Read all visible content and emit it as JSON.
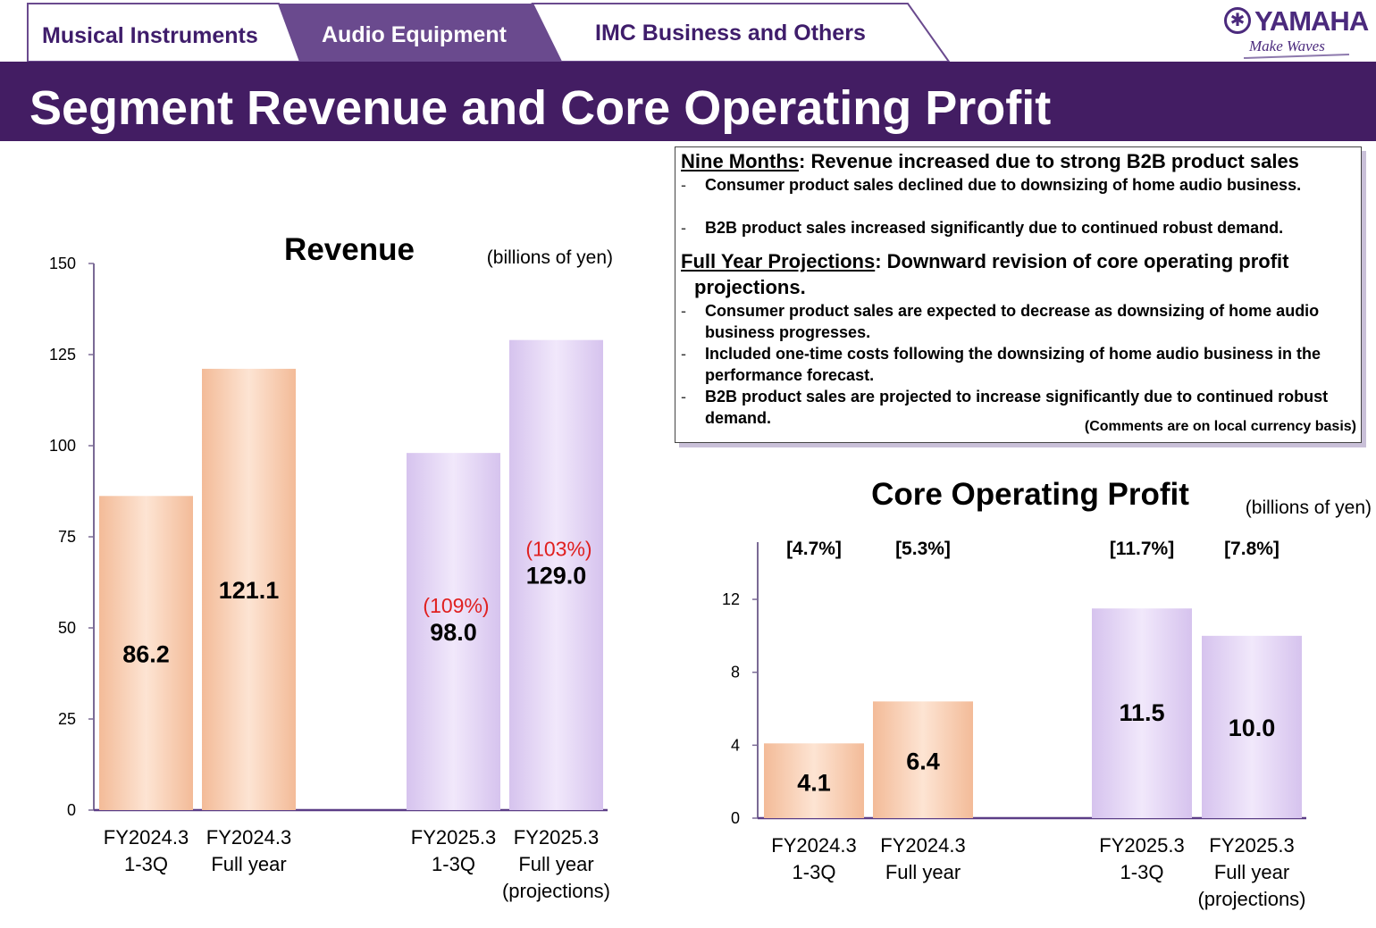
{
  "tabs": [
    {
      "label": "Musical Instruments",
      "active": false
    },
    {
      "label": "Audio Equipment",
      "active": true
    },
    {
      "label": "IMC Business and Others",
      "active": false
    }
  ],
  "logo": {
    "text": "YAMAHA",
    "tagline": "Make Waves"
  },
  "colors": {
    "brand_purple": "#431d63",
    "tab_active": "#6a4a8e",
    "bar_orange": "#f6c9a9",
    "bar_purple": "#dccbf0",
    "pct_red": "#e02020"
  },
  "page_title": "Segment Revenue and Core Operating Profit",
  "comments": {
    "nine_months": {
      "label": "Nine Months",
      "headline": ": Revenue increased due to strong B2B product sales",
      "bullets": [
        "Consumer product sales declined due to downsizing of home audio business.",
        "B2B product sales increased significantly due to continued robust demand."
      ]
    },
    "full_year": {
      "label": "Full Year Projections",
      "headline": ": Downward revision of core operating profit",
      "headline_cont": "projections.",
      "bullets": [
        "Consumer product sales are expected to decrease as downsizing of home audio business progresses.",
        "Included one-time costs following the downsizing of home audio business in the performance forecast.",
        "B2B product sales are projected to increase significantly due to continued robust demand."
      ]
    },
    "note": "(Comments are on local currency basis)",
    "dash": "-"
  },
  "chart_data": [
    {
      "type": "bar",
      "title": "Revenue",
      "unit": "(billions of yen)",
      "categories": [
        [
          "FY2024.3",
          "1-3Q"
        ],
        [
          "FY2024.3",
          "Full year"
        ],
        [
          "FY2025.3",
          "1-3Q"
        ],
        [
          "FY2025.3",
          "Full year",
          "(projections)"
        ]
      ],
      "values": [
        86.2,
        121.1,
        98.0,
        129.0
      ],
      "value_labels": [
        "86.2",
        "121.1",
        "98.0",
        "129.0"
      ],
      "yoy_labels": [
        "",
        "",
        "(109%)",
        "(103%)"
      ],
      "yticks": [
        0,
        25,
        50,
        75,
        100,
        125,
        150
      ],
      "ylim": [
        0,
        150
      ],
      "xlabel": "",
      "ylabel": ""
    },
    {
      "type": "bar",
      "title": "Core Operating Profit",
      "unit": "(billions of yen)",
      "categories": [
        [
          "FY2024.3",
          "1-3Q"
        ],
        [
          "FY2024.3",
          "Full year"
        ],
        [
          "FY2025.3",
          "1-3Q"
        ],
        [
          "FY2025.3",
          "Full year",
          "(projections)"
        ]
      ],
      "values": [
        4.1,
        6.4,
        11.5,
        10.0
      ],
      "value_labels": [
        "4.1",
        "6.4",
        "11.5",
        "10.0"
      ],
      "margin_labels": [
        "[4.7%]",
        "[5.3%]",
        "[11.7%]",
        "[7.8%]"
      ],
      "yticks": [
        0,
        4,
        8,
        12
      ],
      "ylim": [
        0,
        14.5
      ],
      "xlabel": "",
      "ylabel": ""
    }
  ]
}
